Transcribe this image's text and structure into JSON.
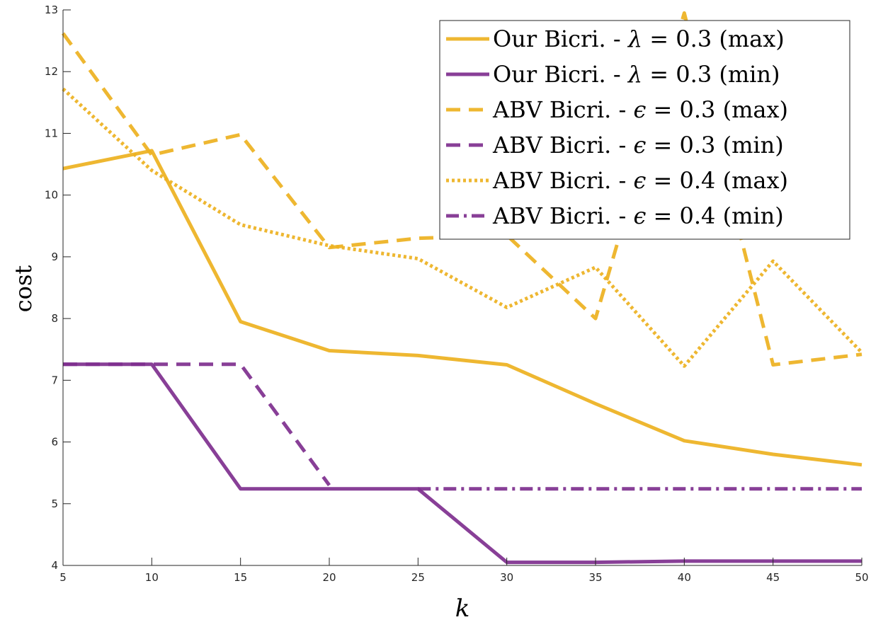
{
  "chart_data": {
    "type": "line",
    "title": "",
    "xlabel": "k",
    "ylabel": "cost",
    "xlim": [
      5,
      50
    ],
    "ylim": [
      4,
      13
    ],
    "xticks": [
      5,
      10,
      15,
      20,
      25,
      30,
      35,
      40,
      45,
      50
    ],
    "yticks": [
      4,
      5,
      6,
      7,
      8,
      9,
      10,
      11,
      12,
      13
    ],
    "grid": false,
    "legend_position": "top-right",
    "series": [
      {
        "name": "Our Bicri. - λ = 0.3 (max)",
        "style": "solid",
        "color": "#EDB120",
        "x": [
          5,
          10,
          15,
          20,
          25,
          30,
          35,
          40,
          45,
          50
        ],
        "y": [
          10.43,
          10.72,
          7.95,
          7.48,
          7.4,
          7.25,
          6.62,
          6.02,
          5.8,
          5.63
        ]
      },
      {
        "name": "Our Bicri. - λ = 0.3 (min)",
        "style": "solid",
        "color": "#7E2F8E",
        "x": [
          5,
          10,
          15,
          20,
          25,
          30,
          35,
          40,
          45,
          50
        ],
        "y": [
          7.26,
          7.26,
          5.24,
          5.24,
          5.24,
          4.05,
          4.05,
          4.07,
          4.07,
          4.07
        ]
      },
      {
        "name": "ABV Bicri. - ε = 0.3 (max)",
        "style": "dashed",
        "color": "#EDB120",
        "x": [
          5,
          10,
          15,
          20,
          25,
          30,
          35,
          40,
          45,
          50
        ],
        "y": [
          12.62,
          10.65,
          10.98,
          9.15,
          9.3,
          9.35,
          8.0,
          12.95,
          7.25,
          7.42
        ]
      },
      {
        "name": "ABV Bicri. - ε = 0.3 (min)",
        "style": "dashed",
        "color": "#7E2F8E",
        "x": [
          5,
          10,
          15,
          20
        ],
        "y": [
          7.26,
          7.26,
          7.26,
          5.3
        ]
      },
      {
        "name": "ABV Bicri. - ε = 0.4 (max)",
        "style": "dotted",
        "color": "#EDB120",
        "x": [
          5,
          10,
          15,
          20,
          25,
          30,
          35,
          40,
          45,
          50
        ],
        "y": [
          11.72,
          10.4,
          9.52,
          9.18,
          8.97,
          8.18,
          8.83,
          7.23,
          8.93,
          7.45
        ]
      },
      {
        "name": "ABV Bicri. - ε = 0.4 (min)",
        "style": "dashdot",
        "color": "#7E2F8E",
        "x": [
          25,
          30,
          35,
          40,
          45,
          50
        ],
        "y": [
          5.24,
          5.24,
          5.24,
          5.24,
          5.24,
          5.24
        ]
      }
    ]
  },
  "legend": {
    "entries": [
      {
        "prefix": "Our Bicri. - ",
        "symbol": "λ",
        "suffix": " = 0.3 (max)"
      },
      {
        "prefix": "Our Bicri. - ",
        "symbol": "λ",
        "suffix": " = 0.3 (min)"
      },
      {
        "prefix": "ABV Bicri. - ",
        "symbol": "ϵ",
        "suffix": " = 0.3 (max)"
      },
      {
        "prefix": "ABV Bicri. - ",
        "symbol": "ϵ",
        "suffix": " = 0.3 (min)"
      },
      {
        "prefix": "ABV Bicri. - ",
        "symbol": "ϵ",
        "suffix": " = 0.4 (max)"
      },
      {
        "prefix": "ABV Bicri. - ",
        "symbol": "ϵ",
        "suffix": " = 0.4 (min)"
      }
    ]
  }
}
